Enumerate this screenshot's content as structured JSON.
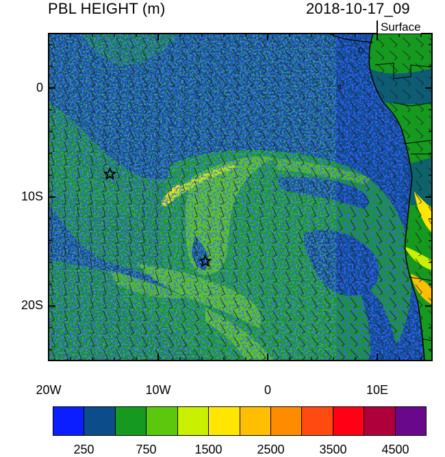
{
  "title": "PBL HEIGHT (m)",
  "datetime": "2018-10-17_09",
  "level": "Surface",
  "map": {
    "lon_range": [
      -20,
      15
    ],
    "lat_range": [
      -25,
      5
    ],
    "x_ticks": [
      {
        "value": -20,
        "label": "20W"
      },
      {
        "value": -10,
        "label": "10W"
      },
      {
        "value": 0,
        "label": "0"
      },
      {
        "value": 10,
        "label": "10E"
      }
    ],
    "y_ticks": [
      {
        "value": 0,
        "label": "0"
      },
      {
        "value": -10,
        "label": "10S"
      },
      {
        "value": -20,
        "label": "20S"
      }
    ],
    "markers": [
      {
        "type": "star",
        "lon": -14.4,
        "lat": -7.9
      },
      {
        "type": "star",
        "lon": -5.7,
        "lat": -15.9
      }
    ]
  },
  "colorbar": {
    "colors": [
      "#0a1eff",
      "#0c4c8a",
      "#16991f",
      "#5cc80d",
      "#c8f000",
      "#ffe600",
      "#ffbe00",
      "#ff8c00",
      "#ff4a10",
      "#ff0014",
      "#b0003c",
      "#6a088c"
    ],
    "labels": [
      {
        "value": 250,
        "text": "250",
        "index": 1
      },
      {
        "value": 750,
        "text": "750",
        "index": 3
      },
      {
        "value": 1500,
        "text": "1500",
        "index": 5
      },
      {
        "value": 2500,
        "text": "2500",
        "index": 7
      },
      {
        "value": 3500,
        "text": "3500",
        "index": 9
      },
      {
        "value": 4500,
        "text": "4500",
        "index": 11
      }
    ]
  }
}
